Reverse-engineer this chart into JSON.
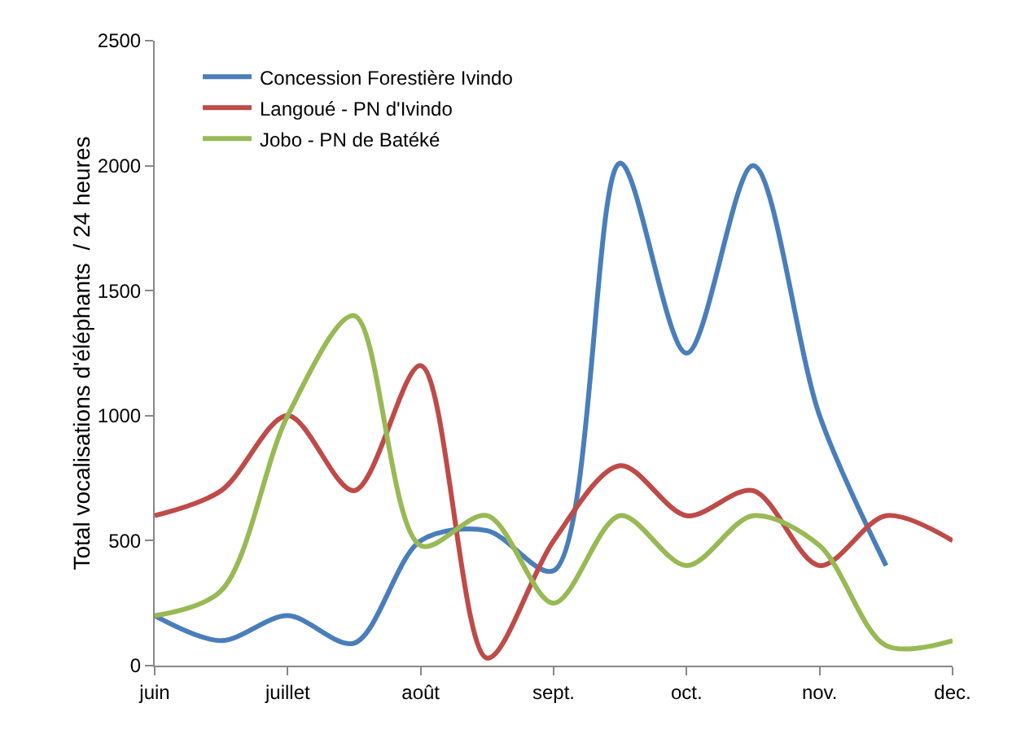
{
  "chart_data": {
    "type": "line",
    "ylabel": "Total vocalisations d'éléphants  / 24 heures",
    "categories": [
      "juin",
      null,
      "juillet",
      null,
      "août",
      null,
      "sept.",
      null,
      "oct.",
      null,
      "nov.",
      null,
      "dec."
    ],
    "ylim": [
      0,
      2500
    ],
    "yticks": [
      0,
      500,
      1000,
      1500,
      2000,
      2500
    ],
    "series": [
      {
        "name": "Concession Forestière Ivindo",
        "color": "#4a7ebb",
        "values": [
          200,
          100,
          200,
          90,
          500,
          540,
          380,
          2010,
          1250,
          2000,
          1000,
          400,
          null
        ]
      },
      {
        "name": "Langoué - PN d'Ivindo",
        "color": "#be4b48",
        "values": [
          600,
          700,
          1000,
          700,
          1200,
          30,
          500,
          800,
          600,
          700,
          400,
          600,
          500
        ]
      },
      {
        "name": "Jobo - PN de Batéké",
        "color": "#98b954",
        "values": [
          200,
          300,
          1000,
          1400,
          480,
          600,
          250,
          600,
          400,
          600,
          480,
          80,
          100
        ]
      }
    ],
    "grid": false,
    "legend": "top left",
    "marker": "none",
    "line_style": "solid"
  }
}
